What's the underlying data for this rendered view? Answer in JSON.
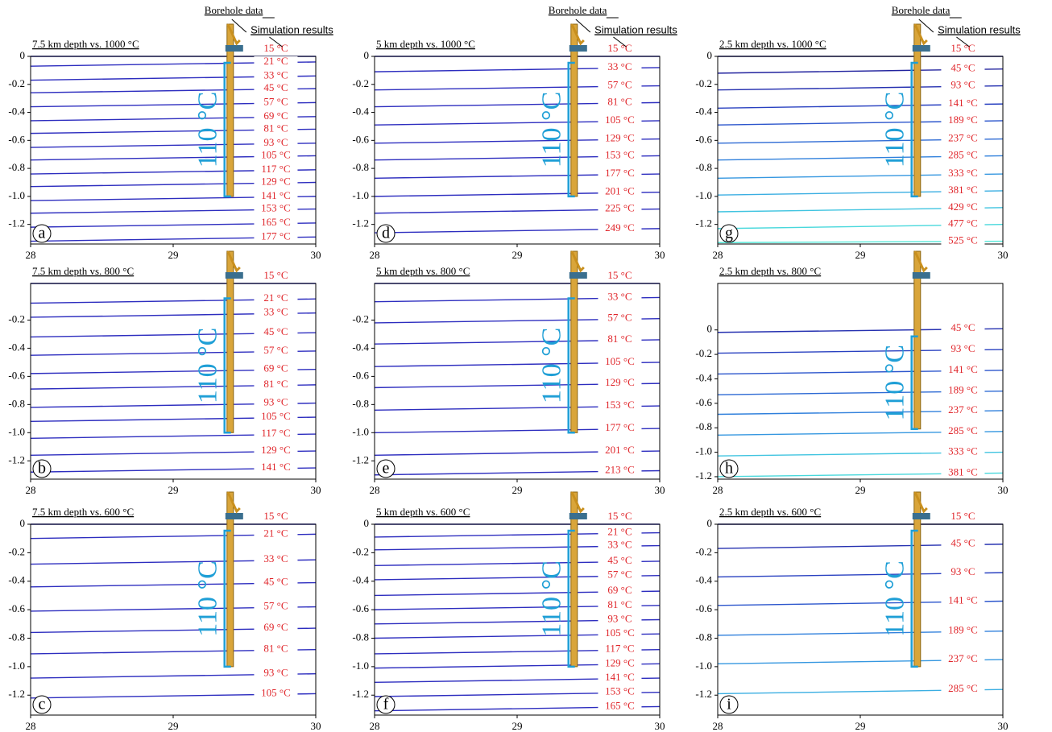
{
  "chart_data": [
    {
      "type": "line",
      "label": "a",
      "title": "7.5 km depth vs. 1000 °C",
      "annotations": [
        "Borehole data",
        "Simulation results"
      ],
      "bracket_label": "110 °C",
      "borehole_depth": -1.0,
      "x": [
        28,
        30
      ],
      "xlim": [
        28,
        30
      ],
      "xticks": [
        28,
        29,
        30
      ],
      "ylim": [
        -1.34,
        0
      ],
      "yticks": [
        0,
        -0.2,
        -0.4,
        -0.6,
        -0.8,
        {
          "value": -1,
          "label": "-1.0"
        },
        -1.2
      ],
      "color": "#2d2dbf",
      "series": [
        {
          "name": "15 °C",
          "values": [
            0,
            0
          ]
        },
        {
          "name": "21 °C",
          "values": [
            -0.07,
            -0.04
          ]
        },
        {
          "name": "33 °C",
          "values": [
            -0.17,
            -0.14
          ]
        },
        {
          "name": "45 °C",
          "values": [
            -0.26,
            -0.23
          ]
        },
        {
          "name": "57 °C",
          "values": [
            -0.36,
            -0.33
          ]
        },
        {
          "name": "69 °C",
          "values": [
            -0.46,
            -0.43
          ]
        },
        {
          "name": "81 °C",
          "values": [
            -0.55,
            -0.52
          ]
        },
        {
          "name": "93 °C",
          "values": [
            -0.65,
            -0.62
          ]
        },
        {
          "name": "105 °C",
          "values": [
            -0.74,
            -0.71
          ]
        },
        {
          "name": "117 °C",
          "values": [
            -0.84,
            -0.81
          ]
        },
        {
          "name": "129 °C",
          "values": [
            -0.93,
            -0.9
          ]
        },
        {
          "name": "141 °C",
          "values": [
            -1.03,
            -1.0
          ]
        },
        {
          "name": "153 °C",
          "values": [
            -1.12,
            -1.09
          ]
        },
        {
          "name": "165 °C",
          "values": [
            -1.22,
            -1.19
          ]
        },
        {
          "name": "177 °C",
          "values": [
            -1.32,
            -1.29
          ]
        }
      ]
    },
    {
      "type": "line",
      "label": "b",
      "title": "7.5 km depth vs. 800 °C",
      "bracket_label": "110 °C",
      "borehole_depth": -1.0,
      "x": [
        28,
        30
      ],
      "xlim": [
        28,
        30
      ],
      "xticks": [
        28,
        29,
        30
      ],
      "ylim": [
        -1.33,
        0.06
      ],
      "yticks": [
        -0.2,
        -0.4,
        -0.6,
        -0.8,
        {
          "value": -1,
          "label": "-1.0"
        },
        -1.2
      ],
      "color": "#2d2dbf",
      "series": [
        {
          "name": "15 °C",
          "values": [
            0.06,
            0.06
          ]
        },
        {
          "name": "21 °C",
          "values": [
            -0.08,
            -0.05
          ]
        },
        {
          "name": "33 °C",
          "values": [
            -0.18,
            -0.15
          ]
        },
        {
          "name": "45 °C",
          "values": [
            -0.32,
            -0.29
          ]
        },
        {
          "name": "57 °C",
          "values": [
            -0.45,
            -0.42
          ]
        },
        {
          "name": "69 °C",
          "values": [
            -0.58,
            -0.55
          ]
        },
        {
          "name": "81 °C",
          "values": [
            -0.69,
            -0.66
          ]
        },
        {
          "name": "93 °C",
          "values": [
            -0.82,
            -0.79
          ]
        },
        {
          "name": "105 °C",
          "values": [
            -0.92,
            -0.89
          ]
        },
        {
          "name": "117 °C",
          "values": [
            -1.04,
            -1.01
          ]
        },
        {
          "name": "129 °C",
          "values": [
            -1.16,
            -1.13
          ]
        },
        {
          "name": "141 °C",
          "values": [
            -1.28,
            -1.25
          ]
        }
      ]
    },
    {
      "type": "line",
      "label": "c",
      "title": "7.5 km depth vs. 600 °C",
      "bracket_label": "110 °C",
      "borehole_depth": -1.0,
      "x": [
        28,
        30
      ],
      "xlim": [
        28,
        30
      ],
      "xticks": [
        28,
        29,
        30
      ],
      "ylim": [
        -1.34,
        0
      ],
      "yticks": [
        0,
        -0.2,
        -0.4,
        -0.6,
        -0.8,
        {
          "value": -1,
          "label": "-1.0"
        },
        -1.2
      ],
      "color": "#2d2dbf",
      "series": [
        {
          "name": "15 °C",
          "values": [
            0,
            0
          ]
        },
        {
          "name": "21 °C",
          "values": [
            -0.1,
            -0.07
          ]
        },
        {
          "name": "33 °C",
          "values": [
            -0.28,
            -0.25
          ]
        },
        {
          "name": "45 °C",
          "values": [
            -0.44,
            -0.41
          ]
        },
        {
          "name": "57 °C",
          "values": [
            -0.61,
            -0.58
          ]
        },
        {
          "name": "69 °C",
          "values": [
            -0.76,
            -0.73
          ]
        },
        {
          "name": "81 °C",
          "values": [
            -0.91,
            -0.88
          ]
        },
        {
          "name": "93 °C",
          "values": [
            -1.08,
            -1.05
          ]
        },
        {
          "name": "105 °C",
          "values": [
            -1.22,
            -1.19
          ]
        }
      ]
    },
    {
      "type": "line",
      "label": "d",
      "title": "5 km depth vs. 1000 °C",
      "annotations": [
        "Borehole data",
        "Simulation results"
      ],
      "bracket_label": "110 °C",
      "borehole_depth": -1.0,
      "x": [
        28,
        30
      ],
      "xlim": [
        28,
        30
      ],
      "xticks": [
        28,
        29,
        30
      ],
      "ylim": [
        -1.34,
        0
      ],
      "yticks": [
        0,
        -0.2,
        -0.4,
        -0.6,
        -0.8,
        {
          "value": -1,
          "label": "-1.0"
        },
        -1.2
      ],
      "color": "#2d2dbf",
      "series": [
        {
          "name": "15 °C",
          "values": [
            0,
            0
          ]
        },
        {
          "name": "33 °C",
          "values": [
            -0.11,
            -0.08
          ]
        },
        {
          "name": "57 °C",
          "values": [
            -0.24,
            -0.21
          ]
        },
        {
          "name": "81 °C",
          "values": [
            -0.36,
            -0.33
          ]
        },
        {
          "name": "105 °C",
          "values": [
            -0.49,
            -0.46
          ]
        },
        {
          "name": "129 °C",
          "values": [
            -0.62,
            -0.59
          ]
        },
        {
          "name": "153 °C",
          "values": [
            -0.74,
            -0.71
          ]
        },
        {
          "name": "177 °C",
          "values": [
            -0.87,
            -0.84
          ]
        },
        {
          "name": "201 °C",
          "values": [
            -1.0,
            -0.97
          ]
        },
        {
          "name": "225 °C",
          "values": [
            -1.12,
            -1.09
          ]
        },
        {
          "name": "249 °C",
          "values": [
            -1.26,
            -1.23
          ]
        }
      ]
    },
    {
      "type": "line",
      "label": "e",
      "title": "5 km depth vs. 800 °C",
      "bracket_label": "110 °C",
      "borehole_depth": -1.0,
      "x": [
        28,
        30
      ],
      "xlim": [
        28,
        30
      ],
      "xticks": [
        28,
        29,
        30
      ],
      "ylim": [
        -1.33,
        0.06
      ],
      "yticks": [
        -0.2,
        -0.4,
        -0.6,
        -0.8,
        {
          "value": -1,
          "label": "-1.0"
        },
        -1.2
      ],
      "color": "#2d2dbf",
      "series": [
        {
          "name": "15 °C",
          "values": [
            0.06,
            0.06
          ]
        },
        {
          "name": "33 °C",
          "values": [
            -0.07,
            -0.04
          ]
        },
        {
          "name": "57 °C",
          "values": [
            -0.22,
            -0.19
          ]
        },
        {
          "name": "81 °C",
          "values": [
            -0.37,
            -0.34
          ]
        },
        {
          "name": "105 °C",
          "values": [
            -0.53,
            -0.5
          ]
        },
        {
          "name": "129 °C",
          "values": [
            -0.68,
            -0.65
          ]
        },
        {
          "name": "153 °C",
          "values": [
            -0.84,
            -0.81
          ]
        },
        {
          "name": "177 °C",
          "values": [
            -1.0,
            -0.97
          ]
        },
        {
          "name": "201 °C",
          "values": [
            -1.16,
            -1.13
          ]
        },
        {
          "name": "213 °C",
          "values": [
            -1.3,
            -1.27
          ]
        }
      ]
    },
    {
      "type": "line",
      "label": "f",
      "title": "5 km depth vs. 600 °C",
      "bracket_label": "110 °C",
      "borehole_depth": -1.0,
      "x": [
        28,
        30
      ],
      "xlim": [
        28,
        30
      ],
      "xticks": [
        28,
        29,
        30
      ],
      "ylim": [
        -1.34,
        0
      ],
      "yticks": [
        0,
        -0.2,
        -0.4,
        -0.6,
        -0.8,
        {
          "value": -1,
          "label": "-1.0"
        },
        -1.2
      ],
      "color": "#2d2dbf",
      "series": [
        {
          "name": "15 °C",
          "values": [
            0,
            0
          ]
        },
        {
          "name": "21 °C",
          "values": [
            -0.09,
            -0.06
          ]
        },
        {
          "name": "33 °C",
          "values": [
            -0.18,
            -0.15
          ]
        },
        {
          "name": "45 °C",
          "values": [
            -0.29,
            -0.26
          ]
        },
        {
          "name": "57 °C",
          "values": [
            -0.39,
            -0.36
          ]
        },
        {
          "name": "69 °C",
          "values": [
            -0.5,
            -0.47
          ]
        },
        {
          "name": "81 °C",
          "values": [
            -0.6,
            -0.57
          ]
        },
        {
          "name": "93 °C",
          "values": [
            -0.7,
            -0.67
          ]
        },
        {
          "name": "105 °C",
          "values": [
            -0.8,
            -0.77
          ]
        },
        {
          "name": "117 °C",
          "values": [
            -0.91,
            -0.88
          ]
        },
        {
          "name": "129 °C",
          "values": [
            -1.01,
            -0.98
          ]
        },
        {
          "name": "141 °C",
          "values": [
            -1.11,
            -1.08
          ]
        },
        {
          "name": "153 °C",
          "values": [
            -1.21,
            -1.18
          ]
        },
        {
          "name": "165 °C",
          "values": [
            -1.31,
            -1.28
          ]
        }
      ]
    },
    {
      "type": "line",
      "label": "g",
      "title": "2.5 km depth vs. 1000 °C",
      "annotations": [
        "Borehole data",
        "Simulation results"
      ],
      "bracket_label": "110 °C",
      "borehole_depth": -1.0,
      "x": [
        28,
        30
      ],
      "xlim": [
        28,
        30
      ],
      "xticks": [
        28,
        29,
        30
      ],
      "ylim": [
        -1.34,
        0
      ],
      "yticks": [
        0,
        -0.2,
        -0.4,
        -0.6,
        -0.8,
        {
          "value": -1,
          "label": "-1.0"
        },
        -1.2
      ],
      "color": "#2d2dbf",
      "series": [
        {
          "name": "15 °C",
          "color": "#1c1c8c",
          "values": [
            0,
            0
          ]
        },
        {
          "name": "45 °C",
          "color": "#22239e",
          "values": [
            -0.12,
            -0.09
          ]
        },
        {
          "name": "93 °C",
          "color": "#2530b0",
          "values": [
            -0.24,
            -0.21
          ]
        },
        {
          "name": "141 °C",
          "color": "#2840c0",
          "values": [
            -0.37,
            -0.34
          ]
        },
        {
          "name": "189 °C",
          "color": "#2b55cc",
          "values": [
            -0.49,
            -0.46
          ]
        },
        {
          "name": "237 °C",
          "color": "#2d6ad4",
          "values": [
            -0.62,
            -0.59
          ]
        },
        {
          "name": "285 °C",
          "color": "#3080dc",
          "values": [
            -0.74,
            -0.71
          ]
        },
        {
          "name": "333 °C",
          "color": "#3597e0",
          "values": [
            -0.87,
            -0.84
          ]
        },
        {
          "name": "381 °C",
          "color": "#3aaee2",
          "values": [
            -0.99,
            -0.96
          ]
        },
        {
          "name": "429 °C",
          "color": "#40c4e0",
          "values": [
            -1.11,
            -1.08
          ]
        },
        {
          "name": "477 °C",
          "color": "#48d8dc",
          "values": [
            -1.23,
            -1.2
          ]
        },
        {
          "name": "525 °C",
          "color": "#55e8d8",
          "values": [
            -1.33,
            -1.32
          ]
        }
      ]
    },
    {
      "type": "line",
      "label": "h",
      "title": "2.5 km depth vs. 800 °C",
      "bracket_label": "110 °C",
      "borehole_depth": -0.81,
      "x": [
        28,
        30
      ],
      "xlim": [
        28,
        30
      ],
      "xticks": [
        28,
        29,
        30
      ],
      "ylim": [
        -1.22,
        0.38
      ],
      "yticks": [
        0,
        -0.2,
        -0.4,
        -0.6,
        -0.8,
        {
          "value": -1,
          "label": "-1.0"
        },
        -1.2
      ],
      "color": "#2d2dbf",
      "series": [
        {
          "name": "45 °C",
          "color": "#2530b0",
          "values": [
            -0.02,
            0.01
          ]
        },
        {
          "name": "93 °C",
          "color": "#2840c0",
          "values": [
            -0.19,
            -0.16
          ]
        },
        {
          "name": "141 °C",
          "color": "#2b55cc",
          "values": [
            -0.36,
            -0.33
          ]
        },
        {
          "name": "189 °C",
          "color": "#2d6ad4",
          "values": [
            -0.53,
            -0.5
          ]
        },
        {
          "name": "237 °C",
          "color": "#3080dc",
          "values": [
            -0.69,
            -0.66
          ]
        },
        {
          "name": "285 °C",
          "color": "#3597e0",
          "values": [
            -0.86,
            -0.83
          ]
        },
        {
          "name": "333 °C",
          "color": "#40c4e0",
          "values": [
            -1.03,
            -1.0
          ]
        },
        {
          "name": "381 °C",
          "color": "#48d8dc",
          "values": [
            -1.2,
            -1.17
          ]
        }
      ]
    },
    {
      "type": "line",
      "label": "i",
      "title": "2.5 km depth vs. 600 °C",
      "bracket_label": "110 °C",
      "borehole_depth": -1.0,
      "x": [
        28,
        30
      ],
      "xlim": [
        28,
        30
      ],
      "xticks": [
        28,
        29,
        30
      ],
      "ylim": [
        -1.34,
        0
      ],
      "yticks": [
        0,
        -0.2,
        -0.4,
        -0.6,
        -0.8,
        {
          "value": -1,
          "label": "-1.0"
        },
        -1.2
      ],
      "color": "#2d2dbf",
      "series": [
        {
          "name": "15 °C",
          "color": "#1c1c8c",
          "values": [
            0,
            0
          ]
        },
        {
          "name": "45 °C",
          "color": "#2530b0",
          "values": [
            -0.17,
            -0.14
          ]
        },
        {
          "name": "93 °C",
          "color": "#2840c0",
          "values": [
            -0.37,
            -0.34
          ]
        },
        {
          "name": "141 °C",
          "color": "#2b55cc",
          "values": [
            -0.57,
            -0.54
          ]
        },
        {
          "name": "189 °C",
          "color": "#3080dc",
          "values": [
            -0.78,
            -0.75
          ]
        },
        {
          "name": "237 °C",
          "color": "#3597e0",
          "values": [
            -0.98,
            -0.95
          ]
        },
        {
          "name": "285 °C",
          "color": "#3aaee2",
          "values": [
            -1.19,
            -1.16
          ]
        }
      ]
    }
  ]
}
